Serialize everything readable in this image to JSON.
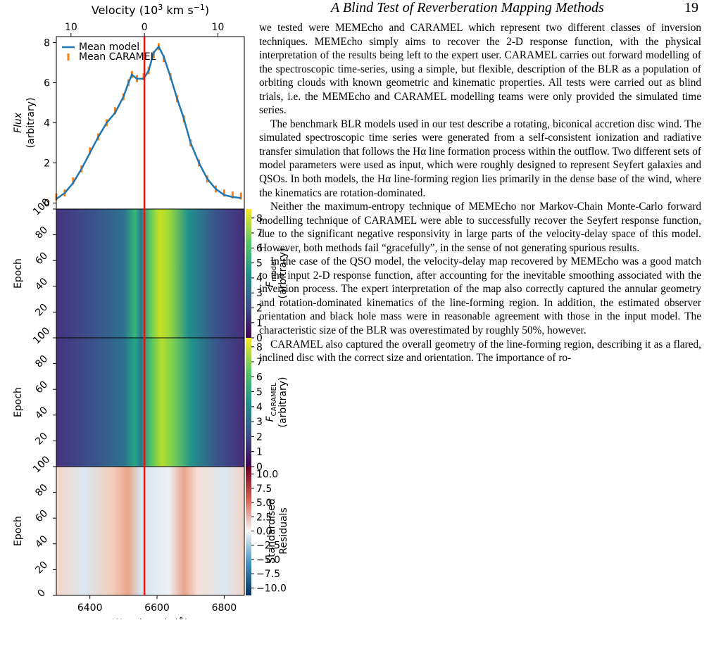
{
  "header": {
    "running_title": "A Blind Test of Reverberation Mapping Methods",
    "page_number": "19"
  },
  "figure": {
    "velocity_axis": {
      "label": {
        "text": "Velocity (10",
        "exp": "3",
        "unit": " km s",
        "unit_exp": "−1",
        "close": ")"
      },
      "xlim": [
        -12.0,
        13.6
      ],
      "ticks": [
        {
          "value": -10,
          "label": "10"
        },
        0,
        10
      ]
    },
    "wavelength_axis": {
      "label": "Wavelength (Å)",
      "xlim": [
        6300,
        6860
      ],
      "ticks": [
        6400,
        6600,
        6800
      ]
    },
    "flux_panel": {
      "ylabel_italic": "Flux",
      "ylabel": "(arbitrary)",
      "ylim": [
        -0.3,
        8.3
      ],
      "yticks": [
        0,
        2,
        4,
        6,
        8
      ],
      "x": [
        6300,
        6325,
        6350,
        6375,
        6400,
        6425,
        6450,
        6475,
        6500,
        6515,
        6525,
        6540,
        6560,
        6575,
        6590,
        6605,
        6620,
        6640,
        6660,
        6680,
        6700,
        6725,
        6750,
        6775,
        6800,
        6825,
        6850
      ],
      "series": [
        {
          "name": "Mean model",
          "color": "#1f77b4",
          "values": [
            0.2,
            0.5,
            1.0,
            1.7,
            2.5,
            3.3,
            4.0,
            4.5,
            5.3,
            6.0,
            6.4,
            6.2,
            6.2,
            6.6,
            7.5,
            7.8,
            7.3,
            6.3,
            5.2,
            4.2,
            3.0,
            2.0,
            1.2,
            0.7,
            0.4,
            0.3,
            0.25
          ]
        },
        {
          "name": "Mean CARAMEL",
          "color": "#ff7f0e",
          "values": [
            0.3,
            0.5,
            1.1,
            1.7,
            2.6,
            3.3,
            4.0,
            4.6,
            5.3,
            6.0,
            6.4,
            6.2,
            6.3,
            6.6,
            7.4,
            7.8,
            7.2,
            6.3,
            5.2,
            4.2,
            3.0,
            2.0,
            1.2,
            0.7,
            0.5,
            0.4,
            0.35
          ]
        }
      ]
    },
    "heatmaps": [
      {
        "ylabel": "Epoch",
        "ylim": [
          0,
          100
        ],
        "yticks": [
          0,
          20,
          40,
          60,
          80,
          100
        ],
        "colorbar": {
          "symbol": "F",
          "subscript": "model",
          "label": "(arbitrary)",
          "lim": [
            0,
            8.6
          ],
          "ticks": [
            0,
            1,
            2,
            3,
            4,
            5,
            6,
            7,
            8
          ]
        }
      },
      {
        "ylabel": "Epoch",
        "ylim": [
          0,
          100
        ],
        "yticks": [
          0,
          20,
          40,
          60,
          80,
          100
        ],
        "colorbar": {
          "symbol": "F",
          "subscript": "CARAMEL",
          "label": "(arbitrary)",
          "lim": [
            0,
            8.6
          ],
          "ticks": [
            0,
            1,
            2,
            3,
            4,
            5,
            6,
            7,
            8
          ]
        }
      },
      {
        "ylabel": "Epoch",
        "ylim": [
          0,
          100
        ],
        "yticks": [
          0,
          20,
          40,
          60,
          80,
          100
        ],
        "colorbar": {
          "symbol": "Standardised",
          "subscript": "",
          "label": "Residuals",
          "lim": [
            -11.3,
            11.3
          ],
          "ticks": [
            {
              "value": -10,
              "label": "−10.0"
            },
            {
              "value": -7.5,
              "label": "−7.5"
            },
            {
              "value": -5,
              "label": "−5.0"
            },
            {
              "value": -2.5,
              "label": "−2.5"
            },
            {
              "value": 0,
              "label": "0.0"
            },
            {
              "value": 2.5,
              "label": "2.5"
            },
            {
              "value": 5,
              "label": "5.0"
            },
            {
              "value": 7.5,
              "label": "7.5"
            },
            {
              "value": 10,
              "label": "10.0"
            }
          ]
        }
      }
    ]
  },
  "body": {
    "paragraphs": [
      "we tested were MEMEcho and CARAMEL which represent two different classes of inversion techniques. MEMEcho simply aims to recover the 2-D response function, with the physical interpretation of the results being left to the expert user. CARAMEL carries out forward modelling of the spectroscopic time-series, using a simple, but flexible, description of the BLR as a population of orbiting clouds with known geometric and kinematic properties. All tests were carried out as blind trials, i.e. the MEMEcho and CARAMEL modelling teams were only provided the simulated time series.",
      "The benchmark BLR models used in our test describe a rotating, biconical accretion disc wind. The simulated spectroscopic time series were generated from a self-consistent ionization and radiative transfer simulation that follows the Hα line formation process within the outflow. Two different sets of model parameters were used as input, which were roughly designed to represent Seyfert galaxies and QSOs. In both models, the Hα line-forming region lies primarily in the dense base of the wind, where the kinematics are rotation-dominated.",
      "Neither the maximum-entropy technique of MEMEcho nor Markov-Chain Monte-Carlo forward modelling technique of CARAMEL were able to successfully recover the Seyfert response function, due to the significant negative responsivity in large parts of the velocity-delay space of this model. However, both methods fail “gracefully”, in the sense of not generating spurious results.",
      "In the case of the QSO model, the velocity-delay map recovered by MEMEcho was a good match to the input 2-D response function, after accounting for the inevitable smoothing associated with the inversion process. The expert interpretation of the map also correctly captured the annular geometry and rotation-dominated kinematics of the line-forming region. In addition, the estimated observer orientation and black hole mass were in reasonable agreement with those in the input model. The characteristic size of the BLR was overestimated by roughly 50%, however.",
      "CARAMEL also captured the overall geometry of the line-forming region, describing it as a flared, inclined disc with the correct size and orientation. The importance of ro-"
    ]
  }
}
